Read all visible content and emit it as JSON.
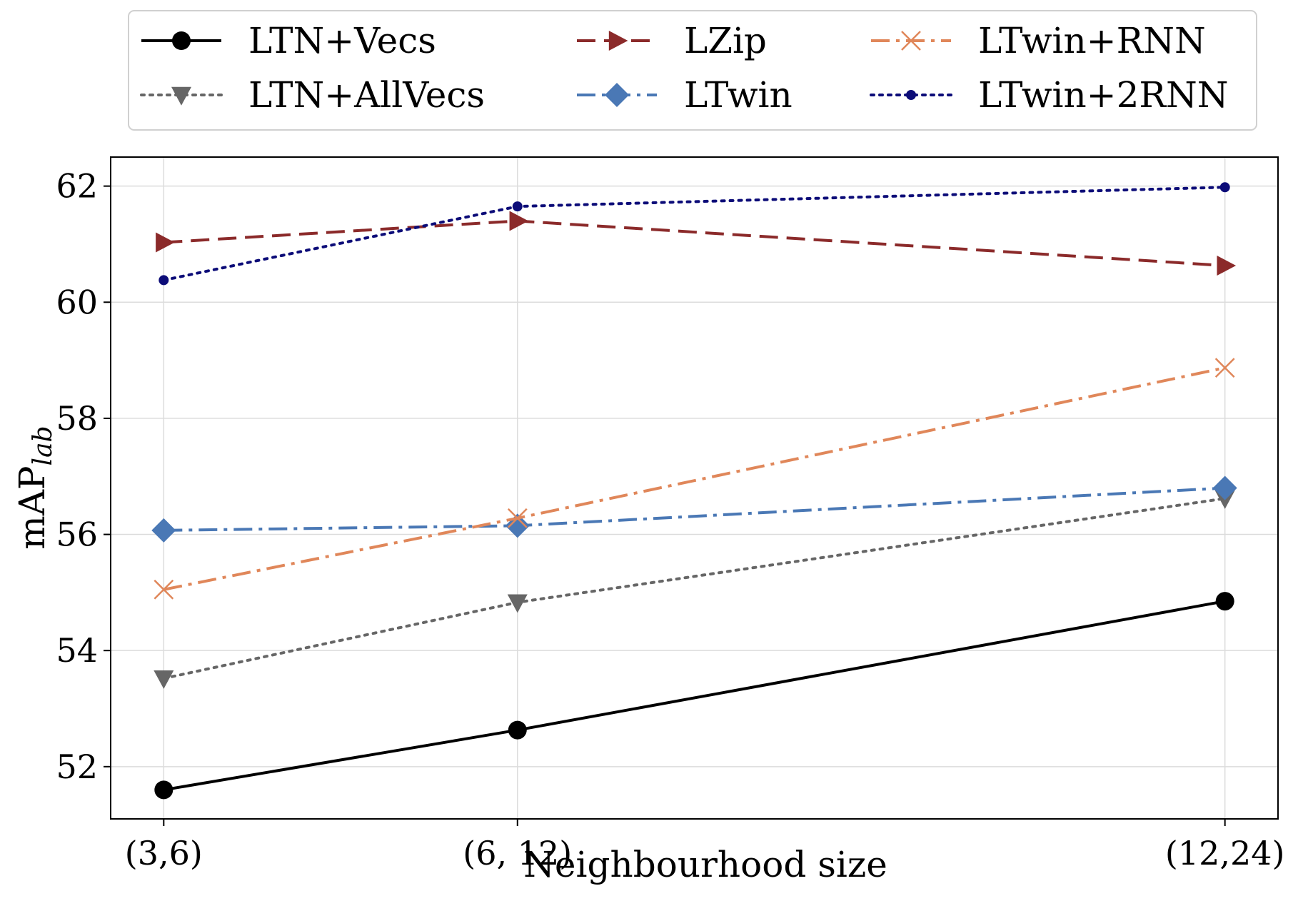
{
  "chart_data": {
    "type": "line",
    "xlabel": "Neighbourhood size",
    "ylabel": "mAP",
    "ylabel_subscript": "lab",
    "categories": [
      "(3,6)",
      "(6, 12)",
      "(12,24)"
    ],
    "x": [
      1,
      2,
      4
    ],
    "xlim": [
      0.85,
      4.15
    ],
    "ylim": [
      51.1,
      62.5
    ],
    "yticks": [
      52,
      54,
      56,
      58,
      60,
      62
    ],
    "grid": true,
    "legend_position": "top, above plot, 3 columns",
    "series": [
      {
        "name": "LTN+Vecs",
        "values": [
          51.6,
          52.63,
          54.85
        ],
        "color": "#000000",
        "linestyle": "solid",
        "marker": "circle"
      },
      {
        "name": "LTN+AllVecs",
        "values": [
          53.52,
          54.83,
          56.62
        ],
        "color": "#666666",
        "linestyle": "dotted",
        "marker": "triangle-down"
      },
      {
        "name": "LZip",
        "values": [
          61.03,
          61.4,
          60.63
        ],
        "color": "#8b2a2a",
        "linestyle": "dashed",
        "marker": "triangle-right"
      },
      {
        "name": "LTwin",
        "values": [
          56.07,
          56.15,
          56.8
        ],
        "color": "#4a78b5",
        "linestyle": "dashdot",
        "marker": "diamond"
      },
      {
        "name": "LTwin+RNN",
        "values": [
          55.05,
          56.28,
          58.87
        ],
        "color": "#e0875a",
        "linestyle": "dashdot",
        "marker": "x"
      },
      {
        "name": "LTwin+2RNN",
        "values": [
          60.38,
          61.65,
          61.98
        ],
        "color": "#0c0c78",
        "linestyle": "dotted",
        "marker": "dot"
      }
    ]
  }
}
